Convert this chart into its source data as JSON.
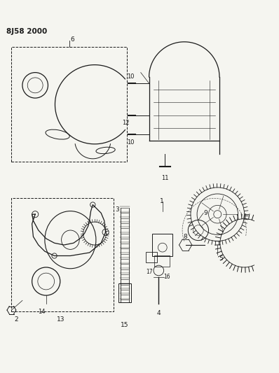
{
  "title_label": "8J58 2000",
  "bg_color": "#f5f5f0",
  "line_color": "#1a1a1a",
  "fig_width": 3.98,
  "fig_height": 5.33,
  "dpi": 100
}
